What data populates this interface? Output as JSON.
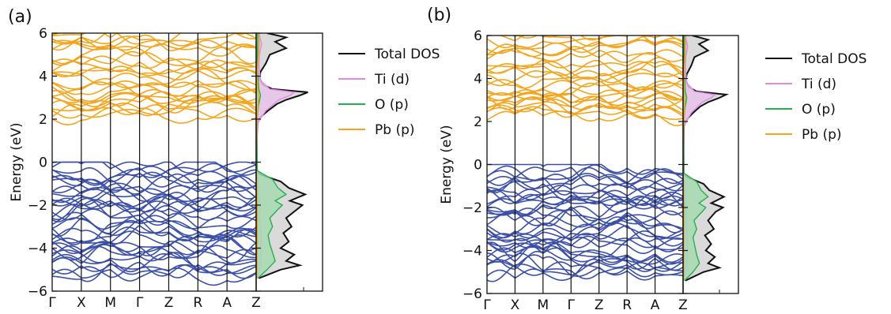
{
  "colors": {
    "valence": "#3b4fa6",
    "conduction": "#f4a51c",
    "total_dos": "#111111",
    "total_fill": "#d4d4d4",
    "ti_d": "#e08ae6",
    "ti_fill": "#e6c3ea",
    "o_p": "#22b14c",
    "o_fill": "#a6d9b0",
    "pb_p": "#f4a51c"
  },
  "chart_data": [
    {
      "type": "line",
      "panel_label": "(a)",
      "ylabel": "Energy (eV)",
      "ylim": [
        -6,
        6
      ],
      "yticks": [
        -6,
        -4,
        -2,
        0,
        2,
        4,
        6
      ],
      "kpath": [
        "Γ",
        "X",
        "M",
        "Γ",
        "Z",
        "R",
        "A",
        "Z"
      ],
      "band_edges": {
        "vbm": 0.0,
        "cbm": 1.65
      },
      "legend": [
        "Total DOS",
        "Ti (d)",
        "O (p)",
        "Pb (p)"
      ],
      "legend_position": "right",
      "dos_series": [
        {
          "name": "Total DOS",
          "energy": [
            -5.4,
            -5.0,
            -4.8,
            -4.6,
            -4.3,
            -4.0,
            -3.7,
            -3.3,
            -3.0,
            -2.6,
            -2.2,
            -2.0,
            -1.8,
            -1.5,
            -1.2,
            -0.9,
            -0.6,
            -0.4,
            1.8,
            2.1,
            2.4,
            2.7,
            2.9,
            3.1,
            3.25,
            3.4,
            3.6,
            3.9,
            4.2,
            4.6,
            5.0,
            5.3,
            5.6,
            5.8,
            6.0
          ],
          "value": [
            0.05,
            0.45,
            0.8,
            0.55,
            0.7,
            0.45,
            0.6,
            0.5,
            0.65,
            0.55,
            0.75,
            0.85,
            0.62,
            0.9,
            0.6,
            0.45,
            0.1,
            0.0,
            0.02,
            0.08,
            0.22,
            0.38,
            0.55,
            0.8,
            0.95,
            0.3,
            0.12,
            0.06,
            0.08,
            0.18,
            0.25,
            0.55,
            0.35,
            0.55,
            0.2
          ]
        },
        {
          "name": "Ti (d)",
          "energy": [
            -5.4,
            -4.8,
            -4.0,
            -3.0,
            -2.0,
            -1.2,
            -0.6,
            1.8,
            2.4,
            2.9,
            3.1,
            3.25,
            3.4,
            3.8,
            4.5,
            5.0,
            5.5,
            6.0
          ],
          "value": [
            0.02,
            0.08,
            0.1,
            0.08,
            0.06,
            0.05,
            0.02,
            0.02,
            0.18,
            0.42,
            0.62,
            0.7,
            0.25,
            0.08,
            0.05,
            0.06,
            0.1,
            0.05
          ]
        },
        {
          "name": "O (p)",
          "energy": [
            -5.4,
            -5.0,
            -4.6,
            -4.2,
            -3.8,
            -3.4,
            -3.0,
            -2.6,
            -2.2,
            -2.0,
            -1.8,
            -1.5,
            -1.2,
            -0.8,
            -0.4,
            1.8,
            2.6,
            3.1,
            3.4,
            4.5,
            6.0
          ],
          "value": [
            0.03,
            0.2,
            0.35,
            0.3,
            0.25,
            0.22,
            0.3,
            0.25,
            0.4,
            0.48,
            0.35,
            0.55,
            0.4,
            0.3,
            0.02,
            0.01,
            0.04,
            0.08,
            0.05,
            0.02,
            0.03
          ]
        },
        {
          "name": "Pb (p)",
          "energy": [
            -5.4,
            -4.0,
            -2.0,
            0.0,
            1.8,
            2.4,
            3.0,
            3.4,
            4.0,
            4.6,
            5.2,
            5.8,
            6.0
          ],
          "value": [
            0.01,
            0.02,
            0.02,
            0.0,
            0.01,
            0.03,
            0.04,
            0.03,
            0.02,
            0.03,
            0.05,
            0.06,
            0.04
          ]
        }
      ]
    },
    {
      "type": "line",
      "panel_label": "(b)",
      "ylabel": "Energy (eV)",
      "ylim": [
        -6,
        6
      ],
      "yticks": [
        -6,
        -4,
        -2,
        0,
        2,
        4,
        6
      ],
      "kpath": [
        "Γ",
        "X",
        "M",
        "Γ",
        "Z",
        "R",
        "A",
        "Z"
      ],
      "band_edges": {
        "vbm": 0.0,
        "cbm": 1.65
      },
      "legend": [
        "Total DOS",
        "Ti (d)",
        "O (p)",
        "Pb (p)"
      ],
      "legend_position": "right",
      "dos_series": [
        {
          "name": "Total DOS",
          "energy": [
            -5.4,
            -5.0,
            -4.8,
            -4.6,
            -4.3,
            -4.0,
            -3.7,
            -3.3,
            -3.0,
            -2.6,
            -2.2,
            -2.0,
            -1.8,
            -1.5,
            -1.2,
            -0.9,
            -0.6,
            -0.4,
            1.8,
            2.1,
            2.4,
            2.7,
            2.9,
            3.1,
            3.25,
            3.4,
            3.6,
            3.9,
            4.2,
            4.6,
            5.0,
            5.3,
            5.6,
            5.8,
            6.0
          ],
          "value": [
            0.05,
            0.45,
            0.8,
            0.55,
            0.7,
            0.5,
            0.62,
            0.48,
            0.68,
            0.55,
            0.72,
            0.88,
            0.62,
            0.9,
            0.58,
            0.45,
            0.1,
            0.0,
            0.02,
            0.08,
            0.22,
            0.38,
            0.55,
            0.8,
            0.95,
            0.3,
            0.12,
            0.06,
            0.08,
            0.18,
            0.25,
            0.55,
            0.35,
            0.55,
            0.2
          ]
        },
        {
          "name": "Ti (d)",
          "energy": [
            -5.4,
            -4.8,
            -4.0,
            -3.0,
            -2.0,
            -1.2,
            -0.6,
            1.8,
            2.4,
            2.9,
            3.1,
            3.25,
            3.4,
            3.8,
            4.5,
            5.0,
            5.5,
            6.0
          ],
          "value": [
            0.02,
            0.08,
            0.1,
            0.08,
            0.06,
            0.05,
            0.02,
            0.02,
            0.18,
            0.42,
            0.62,
            0.7,
            0.25,
            0.08,
            0.05,
            0.06,
            0.1,
            0.05
          ]
        },
        {
          "name": "O (p)",
          "energy": [
            -5.4,
            -5.0,
            -4.6,
            -4.2,
            -3.8,
            -3.4,
            -3.0,
            -2.6,
            -2.2,
            -2.0,
            -1.8,
            -1.5,
            -1.2,
            -0.8,
            -0.4,
            1.8,
            2.6,
            3.1,
            3.4,
            4.5,
            6.0
          ],
          "value": [
            0.03,
            0.22,
            0.36,
            0.3,
            0.26,
            0.22,
            0.3,
            0.24,
            0.42,
            0.5,
            0.35,
            0.55,
            0.4,
            0.3,
            0.02,
            0.01,
            0.04,
            0.08,
            0.05,
            0.02,
            0.03
          ]
        },
        {
          "name": "Pb (p)",
          "energy": [
            -5.4,
            -4.0,
            -2.0,
            0.0,
            1.8,
            2.4,
            3.0,
            3.4,
            4.0,
            4.6,
            5.2,
            5.8,
            6.0
          ],
          "value": [
            0.01,
            0.02,
            0.02,
            0.0,
            0.01,
            0.03,
            0.04,
            0.03,
            0.02,
            0.03,
            0.05,
            0.06,
            0.04
          ]
        }
      ]
    }
  ]
}
